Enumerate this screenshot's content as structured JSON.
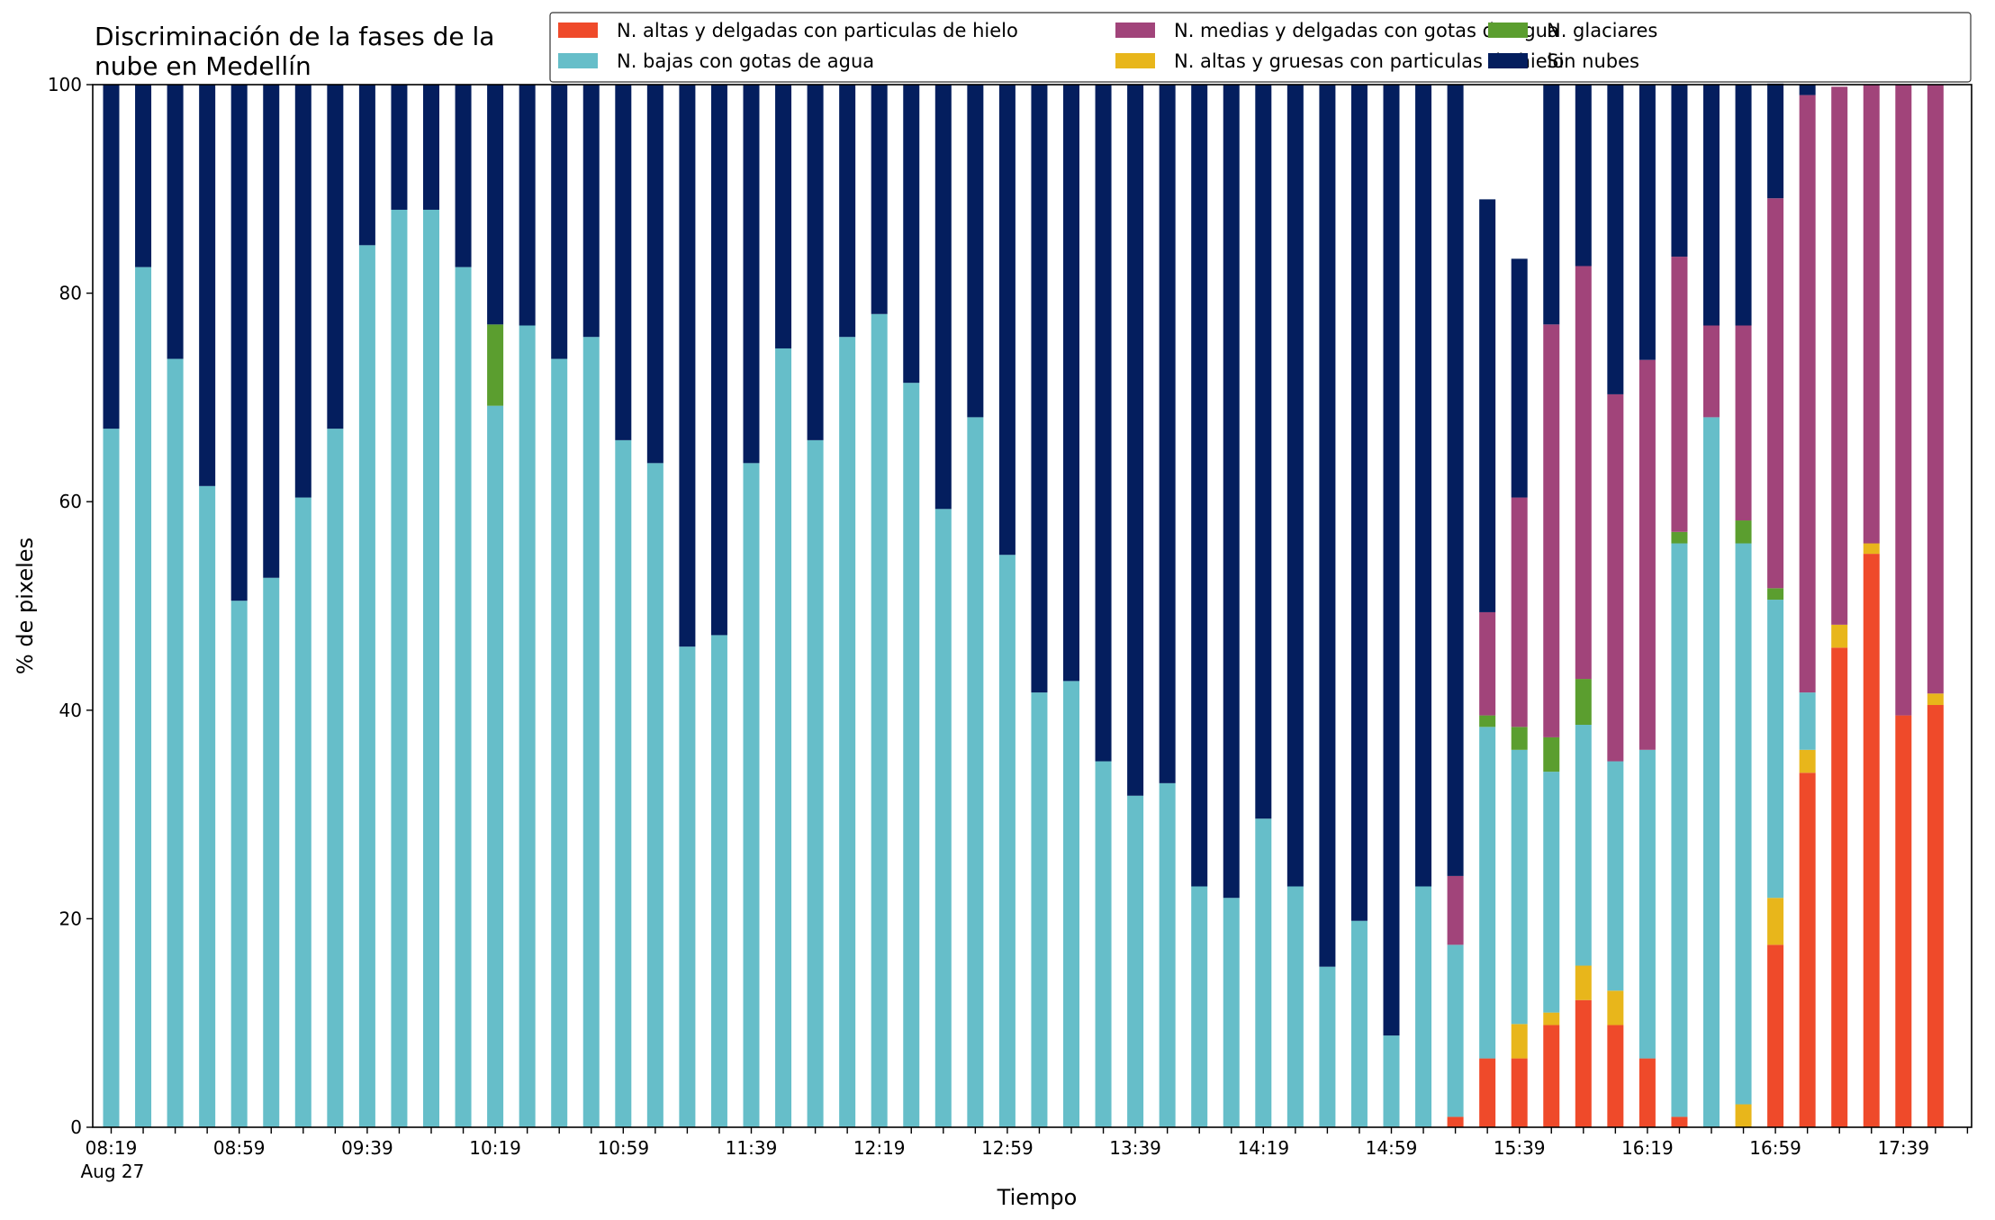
{
  "chart_data": {
    "type": "bar",
    "stacked": true,
    "title": "Discriminación de la fases de la nube en Medellín",
    "title_lines": [
      "Discriminación de la fases de la",
      "nube en Medellín"
    ],
    "xlabel": "Tiempo",
    "ylabel": "% de pixeles",
    "ylim": [
      0,
      100
    ],
    "yticks": [
      "0",
      "20",
      "40",
      "60",
      "80",
      "100"
    ],
    "grid": false,
    "legend_position": "top-right",
    "x_start": "08:19",
    "x_step_minutes": 10,
    "x_tick_labels": [
      "08:19",
      "08:59",
      "09:39",
      "10:19",
      "10:59",
      "11:39",
      "12:19",
      "12:59",
      "13:39",
      "14:19",
      "14:59",
      "15:39",
      "16:19",
      "16:59",
      "17:39"
    ],
    "x_date_label": "Aug 27",
    "legend_order": [
      0,
      2,
      4,
      1,
      3,
      5
    ],
    "series": [
      {
        "name": "N. altas y delgadas con particulas de hielo",
        "color": "#ef4a2a",
        "values": [
          0,
          0,
          0,
          0,
          0,
          0,
          0,
          0,
          0,
          0,
          0,
          0,
          0,
          0,
          0,
          0,
          0,
          0,
          0,
          0,
          0,
          0,
          0,
          0,
          0,
          0,
          0,
          0,
          0,
          0,
          0,
          0,
          0,
          0,
          0,
          0,
          0,
          0,
          0,
          0,
          0,
          0,
          1,
          6.6,
          6.6,
          9.8,
          12.2,
          9.8,
          6.6,
          1,
          0,
          0,
          17.5,
          34,
          46,
          55,
          39.5,
          40.5
        ]
      },
      {
        "name": "N. altas y gruesas con particulas de hielo",
        "color": "#e8b61b",
        "values": [
          0,
          0,
          0,
          0,
          0,
          0,
          0,
          0,
          0,
          0,
          0,
          0,
          0,
          0,
          0,
          0,
          0,
          0,
          0,
          0,
          0,
          0,
          0,
          0,
          0,
          0,
          0,
          0,
          0,
          0,
          0,
          0,
          0,
          0,
          0,
          0,
          0,
          0,
          0,
          0,
          0,
          0,
          0,
          0,
          3.3,
          1.2,
          3.3,
          3.3,
          0,
          0,
          0,
          2.2,
          4.5,
          2.2,
          2.2,
          1,
          0,
          1.1
        ]
      },
      {
        "name": "N. bajas con gotas de agua",
        "color": "#66bec9",
        "values": [
          67,
          82.5,
          73.7,
          61.5,
          50.5,
          52.7,
          60.4,
          67,
          84.6,
          88,
          88,
          82.5,
          69.2,
          76.9,
          73.7,
          75.8,
          65.9,
          63.7,
          46.1,
          47.2,
          63.7,
          74.7,
          65.9,
          75.8,
          78,
          71.4,
          59.3,
          68.1,
          54.9,
          41.7,
          42.8,
          35.1,
          31.8,
          33,
          23.1,
          22,
          29.6,
          23.1,
          15.4,
          19.8,
          8.8,
          23.1,
          16.5,
          31.8,
          26.3,
          23.1,
          23.1,
          22,
          29.6,
          55,
          68.1,
          53.8,
          28.6,
          5.5,
          0,
          0,
          0,
          0
        ]
      },
      {
        "name": "N. glaciares",
        "color": "#5b9e2f",
        "values": [
          0,
          0,
          0,
          0,
          0,
          0,
          0,
          0,
          0,
          0,
          0,
          0,
          7.8,
          0,
          0,
          0,
          0,
          0,
          0,
          0,
          0,
          0,
          0,
          0,
          0,
          0,
          0,
          0,
          0,
          0,
          0,
          0,
          0,
          0,
          0,
          0,
          0,
          0,
          0,
          0,
          0,
          0,
          0,
          1.1,
          2.2,
          3.3,
          4.4,
          0,
          0,
          1.1,
          0,
          2.2,
          1.1,
          0,
          0,
          0,
          0,
          0
        ]
      },
      {
        "name": "N. medias y delgadas con gotas de agua",
        "color": "#a1447a",
        "values": [
          0,
          0,
          0,
          0,
          0,
          0,
          0,
          0,
          0,
          0,
          0,
          0,
          0,
          0,
          0,
          0,
          0,
          0,
          0,
          0,
          0,
          0,
          0,
          0,
          0,
          0,
          0,
          0,
          0,
          0,
          0,
          0,
          0,
          0,
          0,
          0,
          0,
          0,
          0,
          0,
          0,
          0,
          6.6,
          9.9,
          22,
          39.6,
          39.6,
          35.2,
          37.4,
          26.4,
          8.8,
          18.7,
          37.4,
          57.3,
          51.6,
          44,
          60.5,
          58.4
        ]
      },
      {
        "name": "Sin nubes",
        "color": "#041e5e",
        "values": [
          33,
          17.5,
          26.3,
          38.5,
          49.5,
          47.3,
          39.6,
          33,
          15.4,
          12,
          12,
          17.5,
          23,
          23.1,
          26.3,
          24.2,
          34.1,
          36.3,
          53.9,
          52.8,
          36.3,
          25.3,
          34.1,
          24.2,
          22,
          28.6,
          40.7,
          31.9,
          45.1,
          58.3,
          57.2,
          64.9,
          68.2,
          67,
          76.9,
          78,
          70.4,
          76.9,
          84.6,
          80.2,
          91.2,
          76.9,
          75.9,
          39.6,
          22.9,
          23,
          17.4,
          29.7,
          26.4,
          16.5,
          23.1,
          23.1,
          11,
          1,
          0,
          0,
          0,
          0
        ]
      }
    ]
  }
}
